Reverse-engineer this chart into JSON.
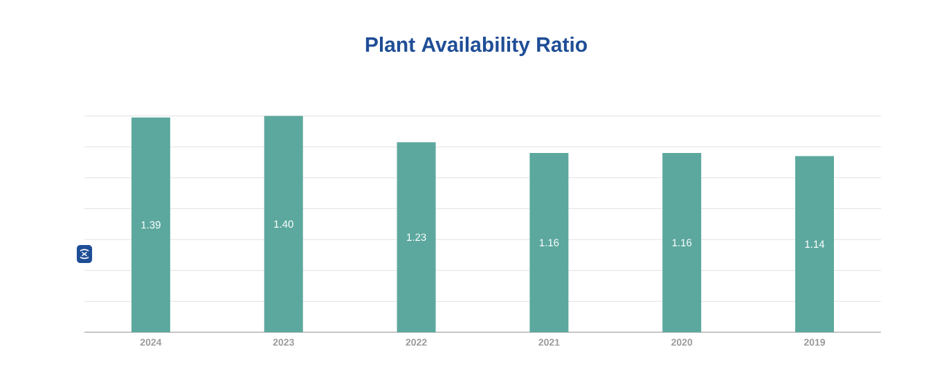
{
  "chart_data": {
    "type": "bar",
    "title": "Plant Availability Ratio",
    "ylabel": "(x)",
    "categories": [
      "2024",
      "2023",
      "2022",
      "2021",
      "2020",
      "2019"
    ],
    "values": [
      1.39,
      1.4,
      1.23,
      1.16,
      1.16,
      1.14
    ],
    "value_labels": [
      "1.39",
      "1.40",
      "1.23",
      "1.16",
      "1.16",
      "1.14"
    ],
    "color": "#5ca89e",
    "tick_labels": "x",
    "grid": "y"
  }
}
